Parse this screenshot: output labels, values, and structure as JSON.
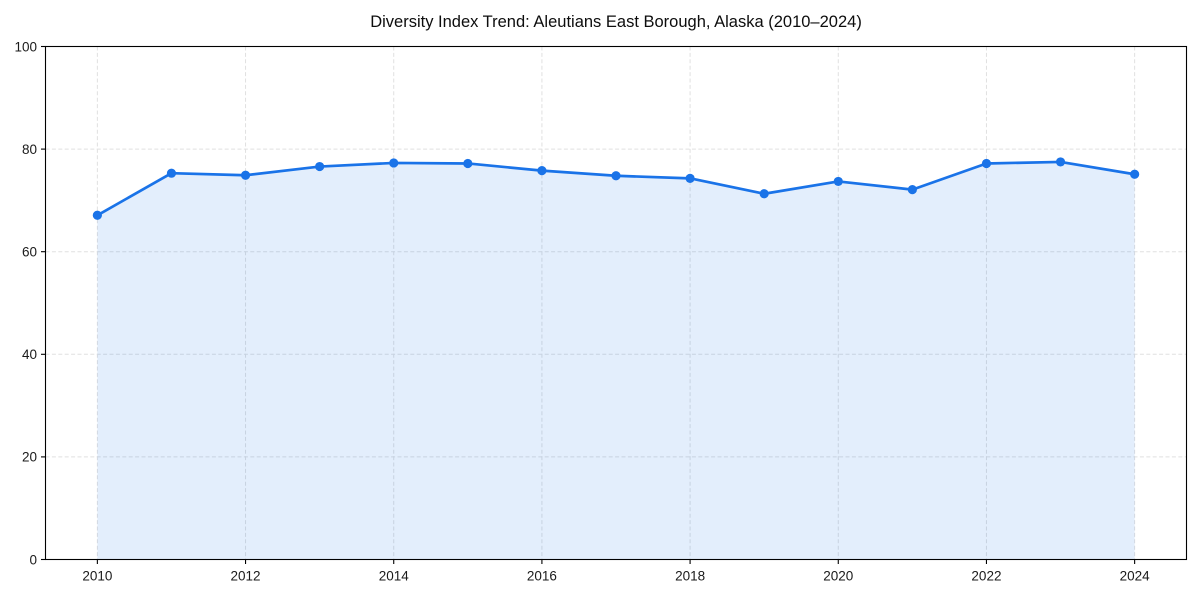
{
  "chart_data": {
    "type": "line",
    "title": "Diversity Index Trend: Aleutians East Borough, Alaska (2010–2024)",
    "xlabel": "",
    "ylabel": "",
    "x": [
      2010,
      2011,
      2012,
      2013,
      2014,
      2015,
      2016,
      2017,
      2018,
      2019,
      2020,
      2021,
      2022,
      2023,
      2024
    ],
    "values": [
      67.1,
      75.3,
      74.9,
      76.6,
      77.3,
      77.2,
      75.8,
      74.8,
      74.3,
      71.3,
      73.7,
      72.1,
      77.2,
      77.5,
      75.1
    ],
    "xticks": [
      2010,
      2012,
      2014,
      2016,
      2018,
      2020,
      2022,
      2024
    ],
    "yticks": [
      0,
      20,
      40,
      60,
      80,
      100
    ],
    "ylim": [
      0,
      100
    ],
    "x_margin_frac": 0.05,
    "grid": true,
    "grid_style": "dashed",
    "legend": "none",
    "area_fill": true,
    "marker": "circle",
    "colors": {
      "line": "#1a73e8",
      "marker": "#1a73e8",
      "fill": "#1a73e8",
      "fill_opacity": 0.12,
      "grid": "#e0e0e0",
      "spine": "#000000",
      "title": "#0d0d0d",
      "tick_label": "#1a1a1a",
      "background": "#ffffff"
    }
  }
}
